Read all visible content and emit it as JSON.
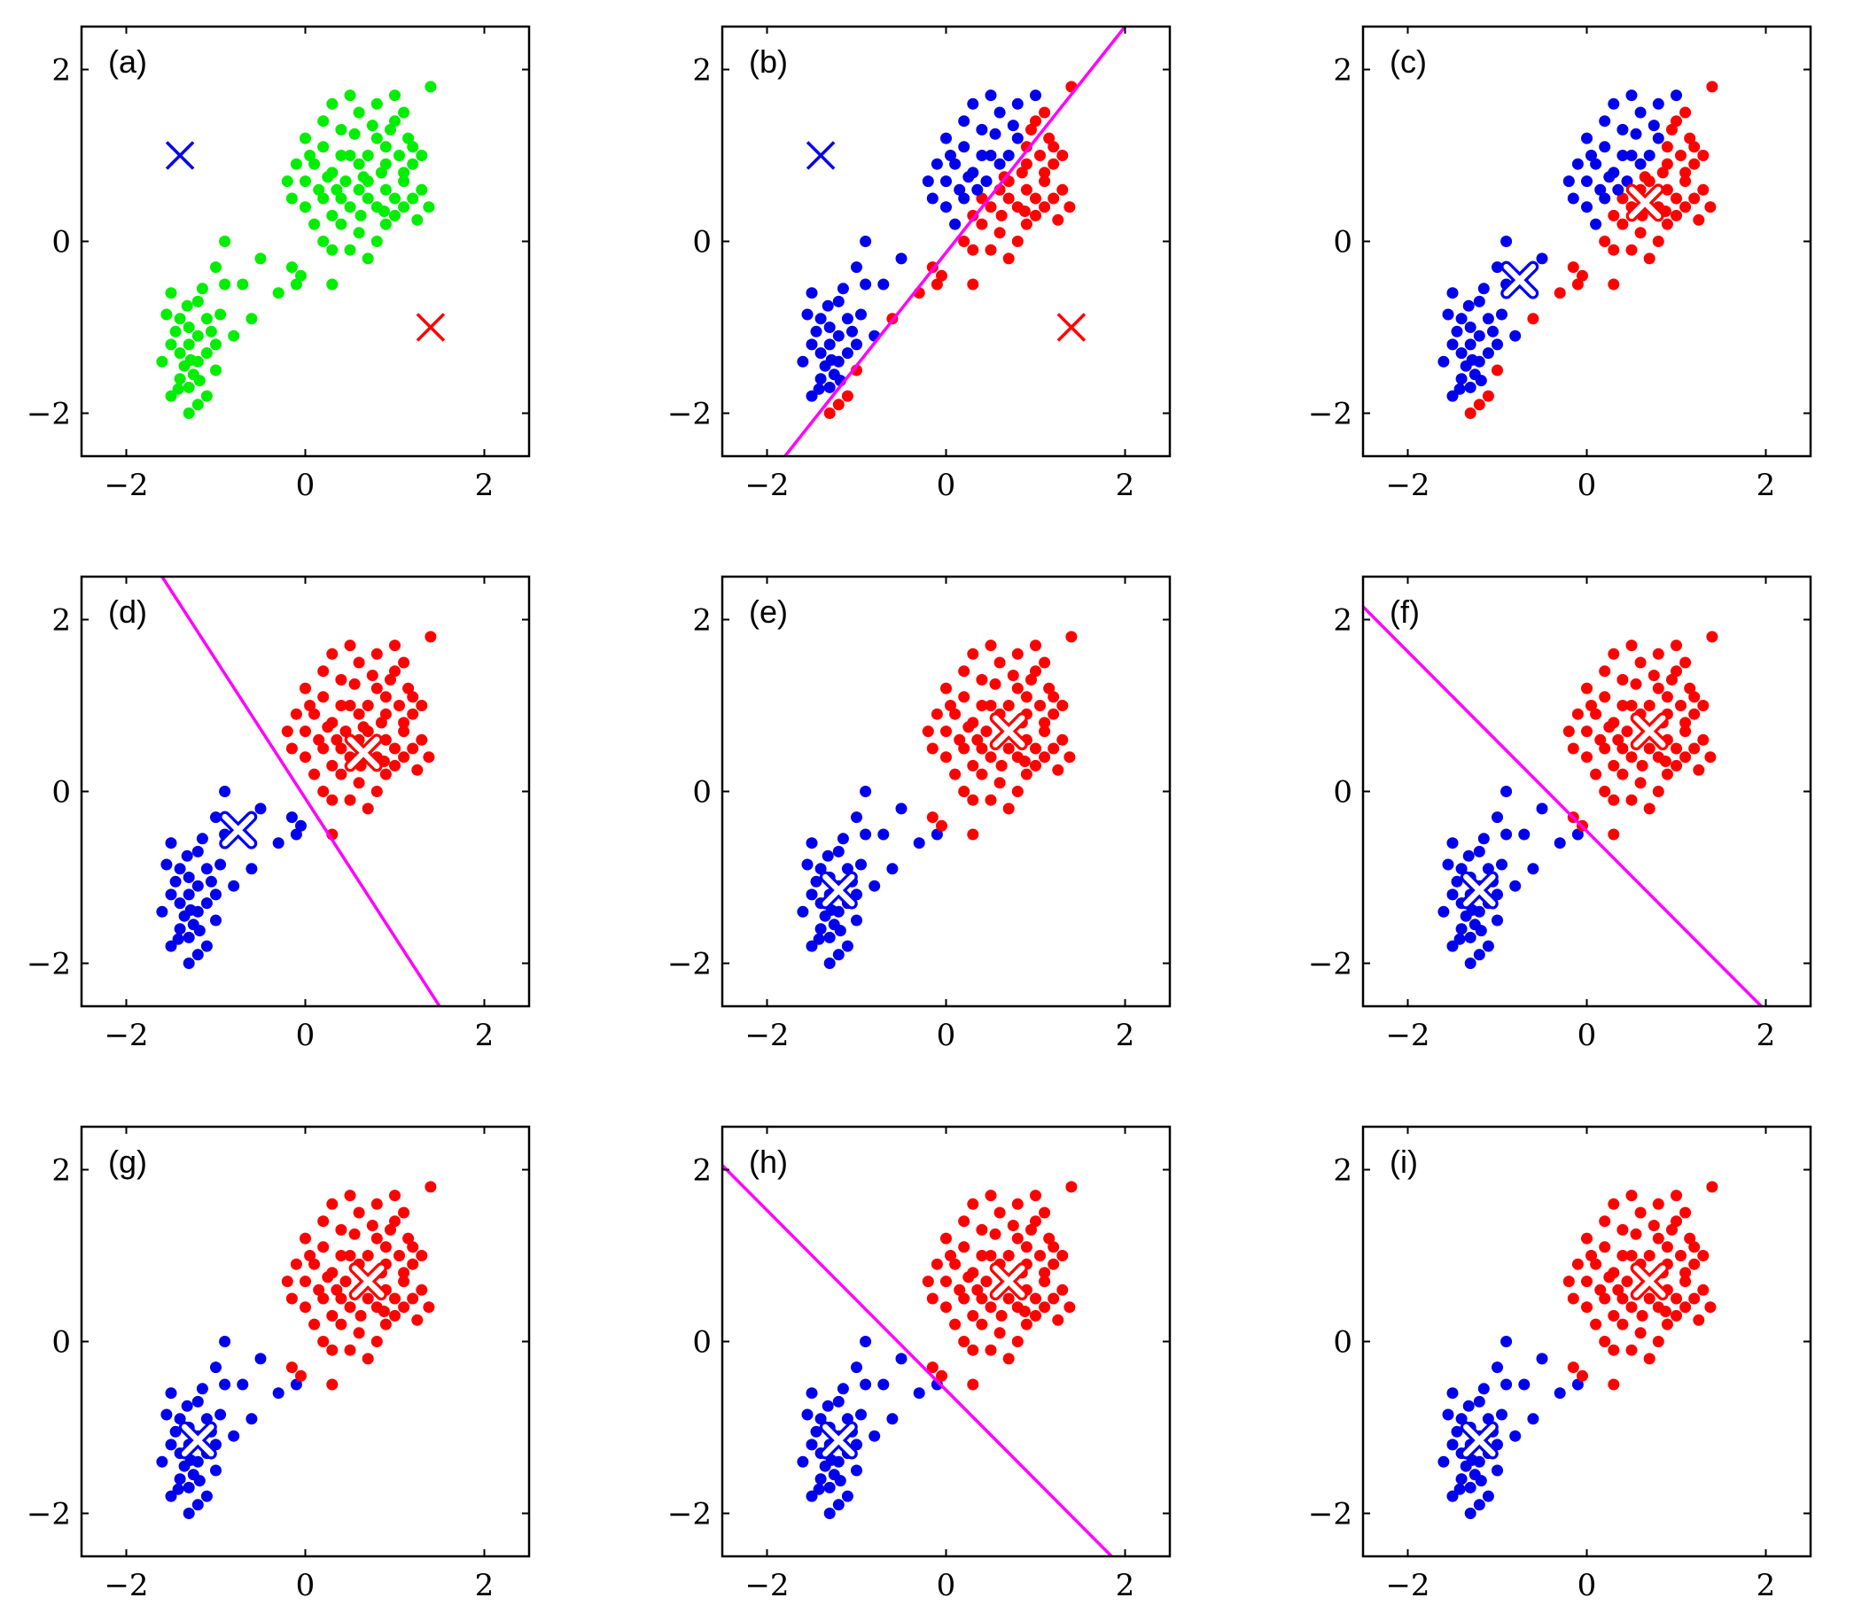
{
  "figure": {
    "title": "",
    "colors": {
      "green": "#00ee00",
      "blue": "#0000ee",
      "red": "#ff0000",
      "boundary": "#ff00ff",
      "axis": "#000000"
    }
  },
  "clusters": {
    "upper": [
      [
        0.0,
        1.2
      ],
      [
        0.1,
        0.9
      ],
      [
        0.2,
        1.4
      ],
      [
        0.3,
        0.8
      ],
      [
        0.4,
        1.3
      ],
      [
        0.5,
        1.0
      ],
      [
        0.6,
        1.5
      ],
      [
        0.7,
        0.7
      ],
      [
        0.8,
        1.2
      ],
      [
        0.9,
        0.9
      ],
      [
        1.0,
        1.4
      ],
      [
        1.1,
        0.8
      ],
      [
        1.2,
        1.1
      ],
      [
        1.3,
        0.6
      ],
      [
        1.4,
        1.8
      ],
      [
        0.3,
        1.6
      ],
      [
        0.5,
        1.7
      ],
      [
        0.8,
        1.6
      ],
      [
        1.0,
        1.7
      ],
      [
        1.1,
        1.5
      ],
      [
        -0.1,
        0.9
      ],
      [
        -0.2,
        0.7
      ],
      [
        0.0,
        0.4
      ],
      [
        0.1,
        0.2
      ],
      [
        0.2,
        0.0
      ],
      [
        0.3,
        -0.1
      ],
      [
        0.4,
        0.2
      ],
      [
        0.5,
        -0.1
      ],
      [
        0.6,
        0.1
      ],
      [
        0.7,
        -0.2
      ],
      [
        0.8,
        0.0
      ],
      [
        0.9,
        0.2
      ],
      [
        1.0,
        0.3
      ],
      [
        1.1,
        0.4
      ],
      [
        1.2,
        0.5
      ],
      [
        0.4,
        0.5
      ],
      [
        0.5,
        0.4
      ],
      [
        0.6,
        0.6
      ],
      [
        0.7,
        0.5
      ],
      [
        0.8,
        0.4
      ],
      [
        0.9,
        0.6
      ],
      [
        1.0,
        0.5
      ],
      [
        1.1,
        0.7
      ],
      [
        0.2,
        0.5
      ],
      [
        0.3,
        0.3
      ],
      [
        0.6,
        0.9
      ],
      [
        0.7,
        1.0
      ],
      [
        0.9,
        1.1
      ],
      [
        0.4,
        1.0
      ],
      [
        0.2,
        1.1
      ],
      [
        1.2,
        0.9
      ],
      [
        1.3,
        1.0
      ],
      [
        0.0,
        0.7
      ],
      [
        -0.15,
        0.5
      ],
      [
        0.55,
        1.25
      ],
      [
        0.75,
        1.35
      ],
      [
        0.95,
        1.3
      ],
      [
        0.85,
        0.8
      ],
      [
        0.65,
        0.75
      ],
      [
        0.45,
        0.7
      ],
      [
        0.25,
        0.75
      ],
      [
        0.15,
        0.6
      ],
      [
        0.35,
        0.6
      ],
      [
        1.05,
        1.0
      ],
      [
        1.15,
        1.2
      ],
      [
        0.05,
        1.0
      ],
      [
        0.62,
        0.3
      ],
      [
        0.88,
        0.35
      ],
      [
        1.25,
        0.25
      ],
      [
        1.38,
        0.4
      ]
    ],
    "bridge": [
      [
        -0.9,
        0.0
      ],
      [
        -0.7,
        -0.5
      ],
      [
        -0.5,
        -0.2
      ],
      [
        -0.3,
        -0.6
      ],
      [
        -0.1,
        -0.5
      ],
      [
        0.3,
        -0.5
      ],
      [
        -0.6,
        -0.9
      ],
      [
        -0.8,
        -1.1
      ],
      [
        -0.15,
        -0.3
      ],
      [
        -0.05,
        -0.4
      ]
    ],
    "lower": [
      [
        -1.6,
        -1.4
      ],
      [
        -1.5,
        -1.2
      ],
      [
        -1.4,
        -1.6
      ],
      [
        -1.3,
        -1.0
      ],
      [
        -1.2,
        -1.4
      ],
      [
        -1.1,
        -1.8
      ],
      [
        -1.0,
        -1.2
      ],
      [
        -1.3,
        -2.0
      ],
      [
        -1.4,
        -0.9
      ],
      [
        -1.5,
        -0.6
      ],
      [
        -1.2,
        -0.7
      ],
      [
        -1.0,
        -0.3
      ],
      [
        -0.9,
        -0.5
      ],
      [
        -1.1,
        -0.9
      ],
      [
        -1.5,
        -1.8
      ],
      [
        -1.3,
        -1.7
      ],
      [
        -1.2,
        -1.9
      ],
      [
        -1.4,
        -1.3
      ],
      [
        -1.3,
        -1.2
      ],
      [
        -1.2,
        -1.1
      ],
      [
        -1.1,
        -1.3
      ],
      [
        -1.0,
        -1.5
      ],
      [
        -1.35,
        -1.45
      ],
      [
        -1.25,
        -1.55
      ],
      [
        -1.45,
        -1.05
      ],
      [
        -1.55,
        -0.85
      ],
      [
        -1.15,
        -0.55
      ],
      [
        -0.95,
        -0.85
      ],
      [
        -1.05,
        -1.05
      ],
      [
        -1.32,
        -0.75
      ],
      [
        -1.18,
        -1.62
      ],
      [
        -1.42,
        -1.72
      ],
      [
        -1.28,
        -1.38
      ]
    ]
  },
  "panels": [
    {
      "label": "(a)",
      "mode": "init",
      "centroids": {
        "blue": [
          -1.4,
          1.0
        ],
        "red": [
          1.4,
          -1.0
        ]
      },
      "centroid_style": "plain",
      "boundary": null
    },
    {
      "label": "(b)",
      "mode": "assign1",
      "centroids": {
        "blue": [
          -1.4,
          1.0
        ],
        "red": [
          1.4,
          -1.0
        ]
      },
      "centroid_style": "plain",
      "boundary": {
        "x": [
          -1.8,
          2.0
        ],
        "y": [
          -2.5,
          2.5
        ]
      }
    },
    {
      "label": "(c)",
      "mode": "assign1",
      "centroids": {
        "blue": [
          -0.75,
          -0.45
        ],
        "red": [
          0.65,
          0.45
        ]
      },
      "centroid_style": "halo",
      "boundary": null
    },
    {
      "label": "(d)",
      "mode": "assign2",
      "centroids": {
        "blue": [
          -0.75,
          -0.45
        ],
        "red": [
          0.65,
          0.45
        ]
      },
      "centroid_style": "halo",
      "boundary": {
        "x": [
          -1.6,
          1.5
        ],
        "y": [
          2.5,
          -2.5
        ]
      }
    },
    {
      "label": "(e)",
      "mode": "assign2",
      "centroids": {
        "blue": [
          -1.2,
          -1.15
        ],
        "red": [
          0.7,
          0.7
        ]
      },
      "centroid_style": "halo",
      "boundary": null
    },
    {
      "label": "(f)",
      "mode": "assign2",
      "centroids": {
        "blue": [
          -1.2,
          -1.15
        ],
        "red": [
          0.7,
          0.7
        ]
      },
      "centroid_style": "halo",
      "boundary": {
        "x": [
          -2.5,
          1.95
        ],
        "y": [
          2.15,
          -2.5
        ]
      }
    },
    {
      "label": "(g)",
      "mode": "assign2",
      "centroids": {
        "blue": [
          -1.2,
          -1.15
        ],
        "red": [
          0.7,
          0.7
        ]
      },
      "centroid_style": "halo",
      "boundary": null
    },
    {
      "label": "(h)",
      "mode": "assign2",
      "centroids": {
        "blue": [
          -1.2,
          -1.15
        ],
        "red": [
          0.7,
          0.7
        ]
      },
      "centroid_style": "halo",
      "boundary": {
        "x": [
          -2.5,
          1.85
        ],
        "y": [
          2.05,
          -2.5
        ]
      }
    },
    {
      "label": "(i)",
      "mode": "assign2",
      "centroids": {
        "blue": [
          -1.2,
          -1.15
        ],
        "red": [
          0.7,
          0.7
        ]
      },
      "centroid_style": "halo",
      "boundary": null
    }
  ],
  "chart_data": {
    "type": "scatter",
    "title": "",
    "xlabel": "",
    "ylabel": "",
    "xlim": [
      -2.5,
      2.5
    ],
    "ylim": [
      -2.5,
      2.5
    ],
    "xticks": [
      -2,
      0,
      2
    ],
    "yticks": [
      -2,
      0,
      2
    ],
    "xtick_labels": [
      "−2",
      "0",
      "2"
    ],
    "ytick_labels": [
      "−2",
      "0",
      "2"
    ],
    "grid": false,
    "panel_labels": [
      "(a)",
      "(b)",
      "(c)",
      "(d)",
      "(e)",
      "(f)",
      "(g)",
      "(h)",
      "(i)"
    ]
  }
}
